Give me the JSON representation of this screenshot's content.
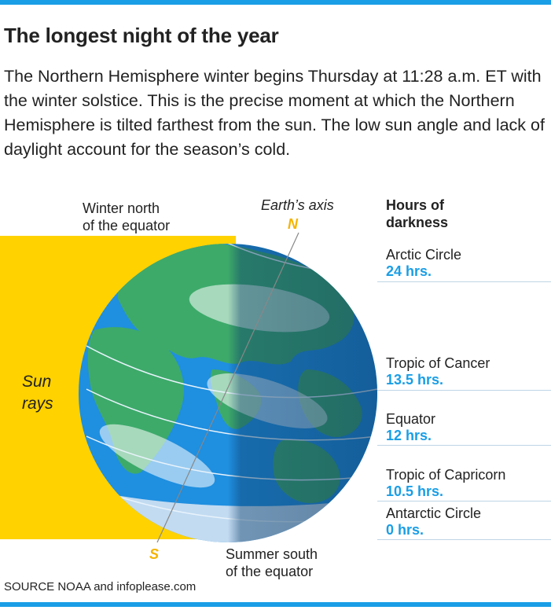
{
  "header": {
    "title": "The longest night of the year",
    "description": "The Northern Hemisphere winter begins Thursday at 11:28 a.m. ET with the winter solstice. This is the precise moment at which the Northern Hemisphere is tilted farthest from the sun. The low sun angle and lack of daylight account for the season’s cold."
  },
  "diagram": {
    "winter_label": [
      "Winter north",
      "of the equator"
    ],
    "axis_label": "Earth’s axis",
    "north_marker": "N",
    "south_marker": "S",
    "summer_label": [
      "Summer south",
      "of the equator"
    ],
    "sun_rays_label": [
      "Sun",
      "rays"
    ],
    "hours_header": [
      "Hours of",
      "darkness"
    ],
    "zones": [
      {
        "name": "Arctic Circle",
        "hours": "24 hrs."
      },
      {
        "name": "Tropic of Cancer",
        "hours": "13.5 hrs."
      },
      {
        "name": "Equator",
        "hours": "12 hrs."
      },
      {
        "name": "Tropic of Capricorn",
        "hours": "10.5 hrs."
      },
      {
        "name": "Antarctic Circle",
        "hours": "0 hrs."
      }
    ]
  },
  "footer": {
    "source": "SOURCE  NOAA and infoplease.com"
  },
  "colors": {
    "accent": "#1a9ee6",
    "sun": "#ffd200",
    "ocean": "#1f8fe0",
    "land": "#3daa6a",
    "night": "#0d3f6b",
    "marker": "#f5b400"
  }
}
